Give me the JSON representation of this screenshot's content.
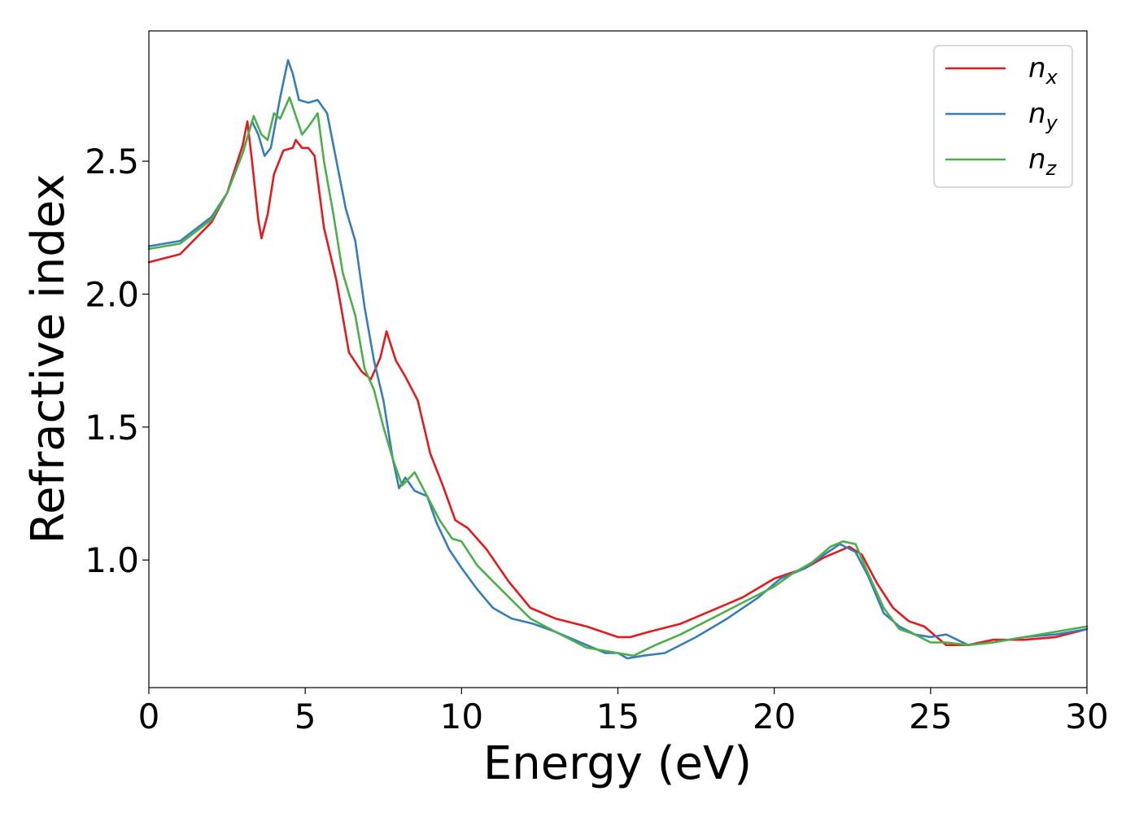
{
  "chart_data": {
    "type": "line",
    "xlabel": "Energy (eV)",
    "ylabel": "Refractive index",
    "xlim": [
      0,
      30
    ],
    "ylim": [
      0.52,
      2.99
    ],
    "xticks": [
      0,
      5,
      10,
      15,
      20,
      25,
      30
    ],
    "xtick_labels": [
      "0",
      "5",
      "10",
      "15",
      "20",
      "25",
      "30"
    ],
    "yticks": [
      1.0,
      1.5,
      2.0,
      2.5
    ],
    "ytick_labels": [
      "1.0",
      "1.5",
      "2.0",
      "2.5"
    ],
    "grid": false,
    "legend_position": "top-right",
    "series": [
      {
        "name": "n_x",
        "label_main": "n",
        "label_sub": "x",
        "color": "#e41a1c",
        "x": [
          0,
          1,
          2,
          2.5,
          3,
          3.15,
          3.3,
          3.5,
          3.6,
          3.8,
          4.0,
          4.3,
          4.6,
          4.7,
          4.9,
          5.1,
          5.3,
          5.6,
          6.0,
          6.4,
          6.8,
          7.1,
          7.4,
          7.6,
          7.9,
          8.2,
          8.6,
          9.0,
          9.4,
          9.8,
          10.2,
          10.8,
          11.5,
          12.2,
          13.0,
          14.0,
          15.0,
          15.4,
          16.0,
          17.0,
          18.0,
          19.0,
          20.0,
          20.5,
          21.0,
          21.6,
          22.0,
          22.4,
          22.8,
          23.3,
          23.8,
          24.3,
          24.8,
          25.5,
          26.2,
          27.0,
          28.0,
          29.0,
          30.0
        ],
        "y": [
          2.12,
          2.15,
          2.27,
          2.38,
          2.56,
          2.65,
          2.5,
          2.28,
          2.21,
          2.3,
          2.45,
          2.54,
          2.55,
          2.58,
          2.55,
          2.55,
          2.52,
          2.25,
          2.05,
          1.78,
          1.71,
          1.68,
          1.76,
          1.86,
          1.75,
          1.69,
          1.6,
          1.4,
          1.28,
          1.15,
          1.12,
          1.04,
          0.92,
          0.82,
          0.78,
          0.75,
          0.71,
          0.71,
          0.73,
          0.76,
          0.81,
          0.86,
          0.93,
          0.95,
          0.97,
          1.01,
          1.03,
          1.05,
          1.02,
          0.91,
          0.82,
          0.77,
          0.75,
          0.68,
          0.68,
          0.7,
          0.7,
          0.71,
          0.74
        ]
      },
      {
        "name": "n_y",
        "label_main": "n",
        "label_sub": "y",
        "color": "#377eb8",
        "x": [
          0,
          1,
          2,
          2.5,
          3,
          3.3,
          3.5,
          3.7,
          3.9,
          4.2,
          4.45,
          4.6,
          4.8,
          5.1,
          5.4,
          5.7,
          6.0,
          6.3,
          6.6,
          6.9,
          7.2,
          7.5,
          7.8,
          8.0,
          8.2,
          8.5,
          8.9,
          9.2,
          9.6,
          10.0,
          10.5,
          11.0,
          11.6,
          12.3,
          13.0,
          14.0,
          14.6,
          15.0,
          15.3,
          15.8,
          16.5,
          17.5,
          18.5,
          19.5,
          20.2,
          21.0,
          21.6,
          22.1,
          22.6,
          23.0,
          23.5,
          24.0,
          24.5,
          25.0,
          25.5,
          26.2,
          27.0,
          28.0,
          29.0,
          30.0
        ],
        "y": [
          2.18,
          2.2,
          2.29,
          2.38,
          2.53,
          2.65,
          2.6,
          2.52,
          2.55,
          2.74,
          2.88,
          2.83,
          2.73,
          2.72,
          2.73,
          2.68,
          2.5,
          2.32,
          2.2,
          1.95,
          1.75,
          1.6,
          1.38,
          1.27,
          1.31,
          1.26,
          1.24,
          1.14,
          1.04,
          0.97,
          0.89,
          0.82,
          0.78,
          0.76,
          0.73,
          0.68,
          0.65,
          0.65,
          0.63,
          0.64,
          0.65,
          0.71,
          0.78,
          0.86,
          0.93,
          0.97,
          1.02,
          1.06,
          1.03,
          0.94,
          0.8,
          0.75,
          0.72,
          0.71,
          0.72,
          0.68,
          0.69,
          0.71,
          0.72,
          0.74
        ]
      },
      {
        "name": "n_z",
        "label_main": "n",
        "label_sub": "z",
        "color": "#4daf4a",
        "x": [
          0,
          1,
          2,
          2.5,
          3,
          3.35,
          3.6,
          3.8,
          4.0,
          4.2,
          4.5,
          4.7,
          4.9,
          5.1,
          5.4,
          5.6,
          5.9,
          6.2,
          6.6,
          6.9,
          7.2,
          7.5,
          7.8,
          8.1,
          8.5,
          8.9,
          9.3,
          9.7,
          10.0,
          10.5,
          11.0,
          11.6,
          12.2,
          13.0,
          14.0,
          15.0,
          15.5,
          16.2,
          17.0,
          18.0,
          19.0,
          20.0,
          20.6,
          21.2,
          21.8,
          22.2,
          22.6,
          23.0,
          23.5,
          24.0,
          24.5,
          25.0,
          25.5,
          26.2,
          27.0,
          28.0,
          29.0,
          30.0
        ],
        "y": [
          2.17,
          2.19,
          2.28,
          2.38,
          2.53,
          2.67,
          2.6,
          2.58,
          2.68,
          2.66,
          2.74,
          2.67,
          2.6,
          2.63,
          2.68,
          2.5,
          2.3,
          2.08,
          1.92,
          1.72,
          1.64,
          1.5,
          1.38,
          1.28,
          1.33,
          1.24,
          1.15,
          1.08,
          1.07,
          0.98,
          0.92,
          0.85,
          0.78,
          0.73,
          0.67,
          0.65,
          0.64,
          0.68,
          0.72,
          0.78,
          0.84,
          0.9,
          0.95,
          0.99,
          1.05,
          1.07,
          1.06,
          0.95,
          0.82,
          0.74,
          0.72,
          0.69,
          0.69,
          0.68,
          0.69,
          0.71,
          0.73,
          0.75
        ]
      }
    ]
  }
}
